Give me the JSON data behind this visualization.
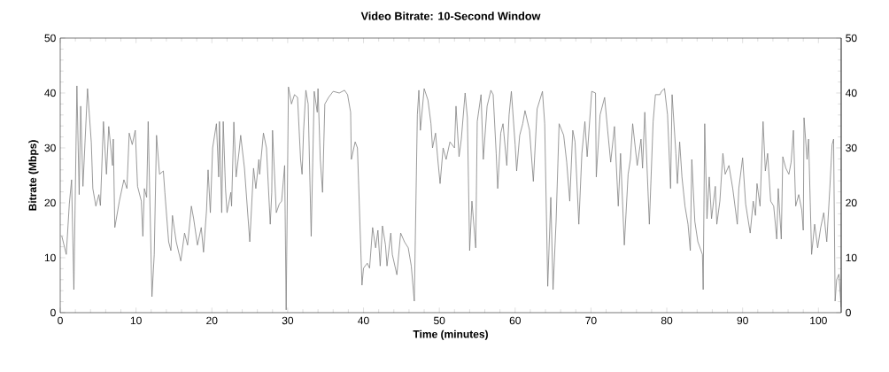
{
  "chart_data": {
    "type": "line",
    "title": "Video Bitrate: 10-Second Window",
    "xlabel": "Time (minutes)",
    "ylabel": "Bitrate (Mbps)",
    "xlim": [
      0,
      103
    ],
    "xticks": [
      0,
      10,
      20,
      30,
      40,
      50,
      60,
      70,
      80,
      90,
      100
    ],
    "ylim": [
      0,
      50
    ],
    "yticks": [
      0,
      10,
      20,
      30,
      40,
      50
    ],
    "y2lim": [
      0,
      50
    ],
    "y2ticks": [
      0,
      10,
      20,
      30,
      40,
      50
    ],
    "color": "#808080",
    "line_style": "solid",
    "marker": "none",
    "x": [
      0.2,
      0.8,
      1.2,
      1.5,
      1.8,
      2.2,
      2.5,
      2.7,
      3.0,
      3.6,
      4.1,
      4.3,
      4.7,
      5.1,
      5.3,
      5.7,
      6.1,
      6.4,
      6.9,
      7.0,
      7.2,
      7.8,
      8.4,
      8.8,
      9.1,
      9.5,
      9.9,
      10.2,
      10.7,
      10.9,
      11.1,
      11.4,
      11.6,
      12.1,
      12.4,
      12.7,
      13.1,
      13.6,
      13.8,
      14.3,
      14.6,
      14.8,
      15.3,
      15.9,
      16.4,
      16.8,
      17.3,
      17.6,
      18.1,
      18.6,
      18.9,
      19.3,
      19.5,
      19.8,
      20.1,
      20.6,
      20.9,
      21.0,
      21.3,
      21.5,
      21.8,
      22.0,
      22.5,
      22.6,
      22.9,
      23.2,
      23.6,
      23.8,
      24.3,
      25.0,
      25.5,
      25.8,
      26.2,
      26.3,
      26.8,
      27.2,
      27.7,
      27.9,
      28.0,
      28.5,
      28.9,
      29.2,
      29.6,
      29.8,
      30.1,
      30.5,
      30.9,
      31.3,
      31.7,
      31.9,
      32.1,
      32.4,
      32.7,
      33.1,
      33.5,
      33.9,
      34.0,
      34.3,
      34.6,
      34.9,
      35.4,
      36.0,
      36.8,
      37.5,
      37.9,
      38.3,
      38.4,
      38.9,
      39.2,
      39.8,
      40.0,
      40.5,
      40.8,
      41.2,
      41.6,
      41.9,
      42.2,
      42.5,
      42.9,
      43.1,
      43.6,
      43.8,
      44.4,
      44.9,
      45.4,
      45.9,
      46.3,
      46.7,
      47.1,
      47.3,
      47.5,
      48.0,
      48.5,
      48.9,
      49.1,
      49.5,
      49.8,
      50.1,
      50.5,
      50.9,
      51.4,
      52.0,
      52.2,
      52.6,
      52.9,
      53.4,
      53.7,
      54.0,
      54.3,
      54.8,
      55.0,
      55.5,
      55.8,
      56.3,
      56.8,
      57.1,
      57.5,
      57.7,
      58.1,
      58.4,
      58.9,
      59.2,
      59.5,
      60.0,
      60.2,
      60.6,
      61.0,
      61.3,
      61.9,
      62.4,
      62.9,
      63.6,
      63.9,
      64.3,
      64.7,
      65.0,
      65.4,
      65.8,
      66.4,
      66.8,
      67.2,
      67.6,
      67.9,
      68.4,
      68.8,
      69.2,
      69.5,
      70.1,
      70.6,
      70.7,
      71.2,
      71.8,
      72.2,
      72.6,
      73.1,
      73.6,
      73.9,
      74.4,
      74.9,
      75.2,
      75.5,
      76.1,
      76.6,
      76.8,
      77.1,
      77.7,
      78.2,
      78.5,
      79.1,
      79.3,
      79.7,
      80.1,
      80.5,
      80.7,
      81.2,
      81.4,
      81.7,
      82.0,
      82.4,
      82.8,
      83.1,
      83.3,
      83.7,
      84.1,
      84.7,
      84.8,
      85.0,
      85.3,
      85.6,
      85.9,
      86.4,
      86.6,
      87.0,
      87.4,
      87.7,
      88.2,
      88.7,
      89.3,
      89.5,
      90.0,
      90.4,
      91.0,
      91.4,
      91.7,
      91.9,
      92.3,
      92.7,
      93.0,
      93.3,
      93.7,
      94.1,
      94.5,
      94.7,
      95.1,
      95.3,
      95.7,
      96.1,
      96.4,
      96.7,
      97.0,
      97.4,
      97.8,
      98.0,
      98.1,
      98.5,
      98.7,
      99.1,
      99.5,
      99.9,
      100.3,
      100.7,
      101.1,
      101.5,
      101.8,
      102.0,
      102.2,
      102.4,
      102.7,
      103.0
    ],
    "values": [
      14,
      10.6,
      19.8,
      24.2,
      4.2,
      41.3,
      21.5,
      37.6,
      23,
      40.8,
      31,
      22.6,
      19.4,
      21.5,
      19.5,
      34.8,
      25.2,
      33.9,
      26.8,
      31.6,
      15.5,
      20.3,
      24.2,
      22.6,
      32.7,
      30.6,
      33.2,
      23,
      20.3,
      13.9,
      22.6,
      21,
      34.8,
      2.9,
      10.6,
      32.3,
      25.2,
      25.8,
      21.9,
      12.9,
      11.3,
      17.7,
      12.9,
      9.4,
      14.5,
      12.3,
      19.4,
      17.1,
      12.3,
      15.5,
      11,
      18.7,
      26,
      18.2,
      30,
      34.4,
      24.7,
      34.8,
      18.2,
      34.8,
      22.6,
      18.2,
      21.9,
      19.4,
      34.7,
      24.7,
      29.5,
      32.3,
      26.3,
      12.9,
      26.3,
      22.6,
      27.9,
      25.2,
      32.7,
      30,
      16.1,
      21.9,
      33.2,
      18.2,
      19.8,
      20.3,
      26.8,
      0.5,
      41.1,
      38,
      39.7,
      39.2,
      27.9,
      25.2,
      33.2,
      40.5,
      38,
      13.9,
      40.3,
      36.5,
      40.8,
      27.9,
      21.9,
      38,
      39.2,
      40.3,
      40,
      40.5,
      39.7,
      36.5,
      27.9,
      31.1,
      30,
      5,
      8.1,
      9,
      8.1,
      15.5,
      11.8,
      15,
      8.5,
      15.8,
      12.3,
      8.5,
      14.5,
      10.6,
      6.9,
      14.5,
      12.9,
      11.8,
      8.5,
      2.1,
      36,
      40.5,
      33.2,
      40.8,
      38.7,
      34.4,
      30,
      32.7,
      27.9,
      23.5,
      30,
      27.9,
      31.1,
      30,
      37.6,
      28.4,
      31.6,
      40,
      35.5,
      11.3,
      20.3,
      11.8,
      34.8,
      39.7,
      27.9,
      37.6,
      40.5,
      39.7,
      29,
      22.6,
      32.7,
      34.4,
      26.8,
      36,
      40.3,
      30.6,
      25.8,
      32.3,
      34.4,
      36.8,
      33.2,
      23.9,
      37.1,
      40.3,
      34.4,
      4.8,
      21,
      4.2,
      16.6,
      34.4,
      32.3,
      27.4,
      20.3,
      33.2,
      31.1,
      16.1,
      29,
      34.8,
      28.4,
      40.3,
      40,
      24.7,
      36,
      39.2,
      33.2,
      27.4,
      33.9,
      19.4,
      29,
      12.3,
      25.2,
      27.9,
      34.4,
      26.8,
      31.6,
      26.3,
      36.5,
      16.1,
      34.8,
      39.7,
      39.7,
      40.3,
      40.8,
      36,
      22.6,
      39.7,
      29,
      23.5,
      31.1,
      24.7,
      19.4,
      16.1,
      11.3,
      27.9,
      16.6,
      12.9,
      10.6,
      4.2,
      34.4,
      17.1,
      24.7,
      17.1,
      23,
      16.1,
      20.3,
      29,
      25.2,
      26.8,
      22.6,
      16.1,
      22.6,
      28.2,
      19.8,
      14.5,
      20.3,
      17.7,
      23.5,
      19.4,
      34.8,
      25.8,
      29,
      20.3,
      19.4,
      13.4,
      22.6,
      13.4,
      28.4,
      26.3,
      25.2,
      27.4,
      33.2,
      19.4,
      21.5,
      18.7,
      15,
      35.5,
      27.9,
      31.6,
      10.6,
      16.1,
      11.8,
      15.5,
      18.2,
      12.9,
      22.6,
      30.6,
      31.6,
      2.1,
      6,
      7,
      1
    ]
  }
}
